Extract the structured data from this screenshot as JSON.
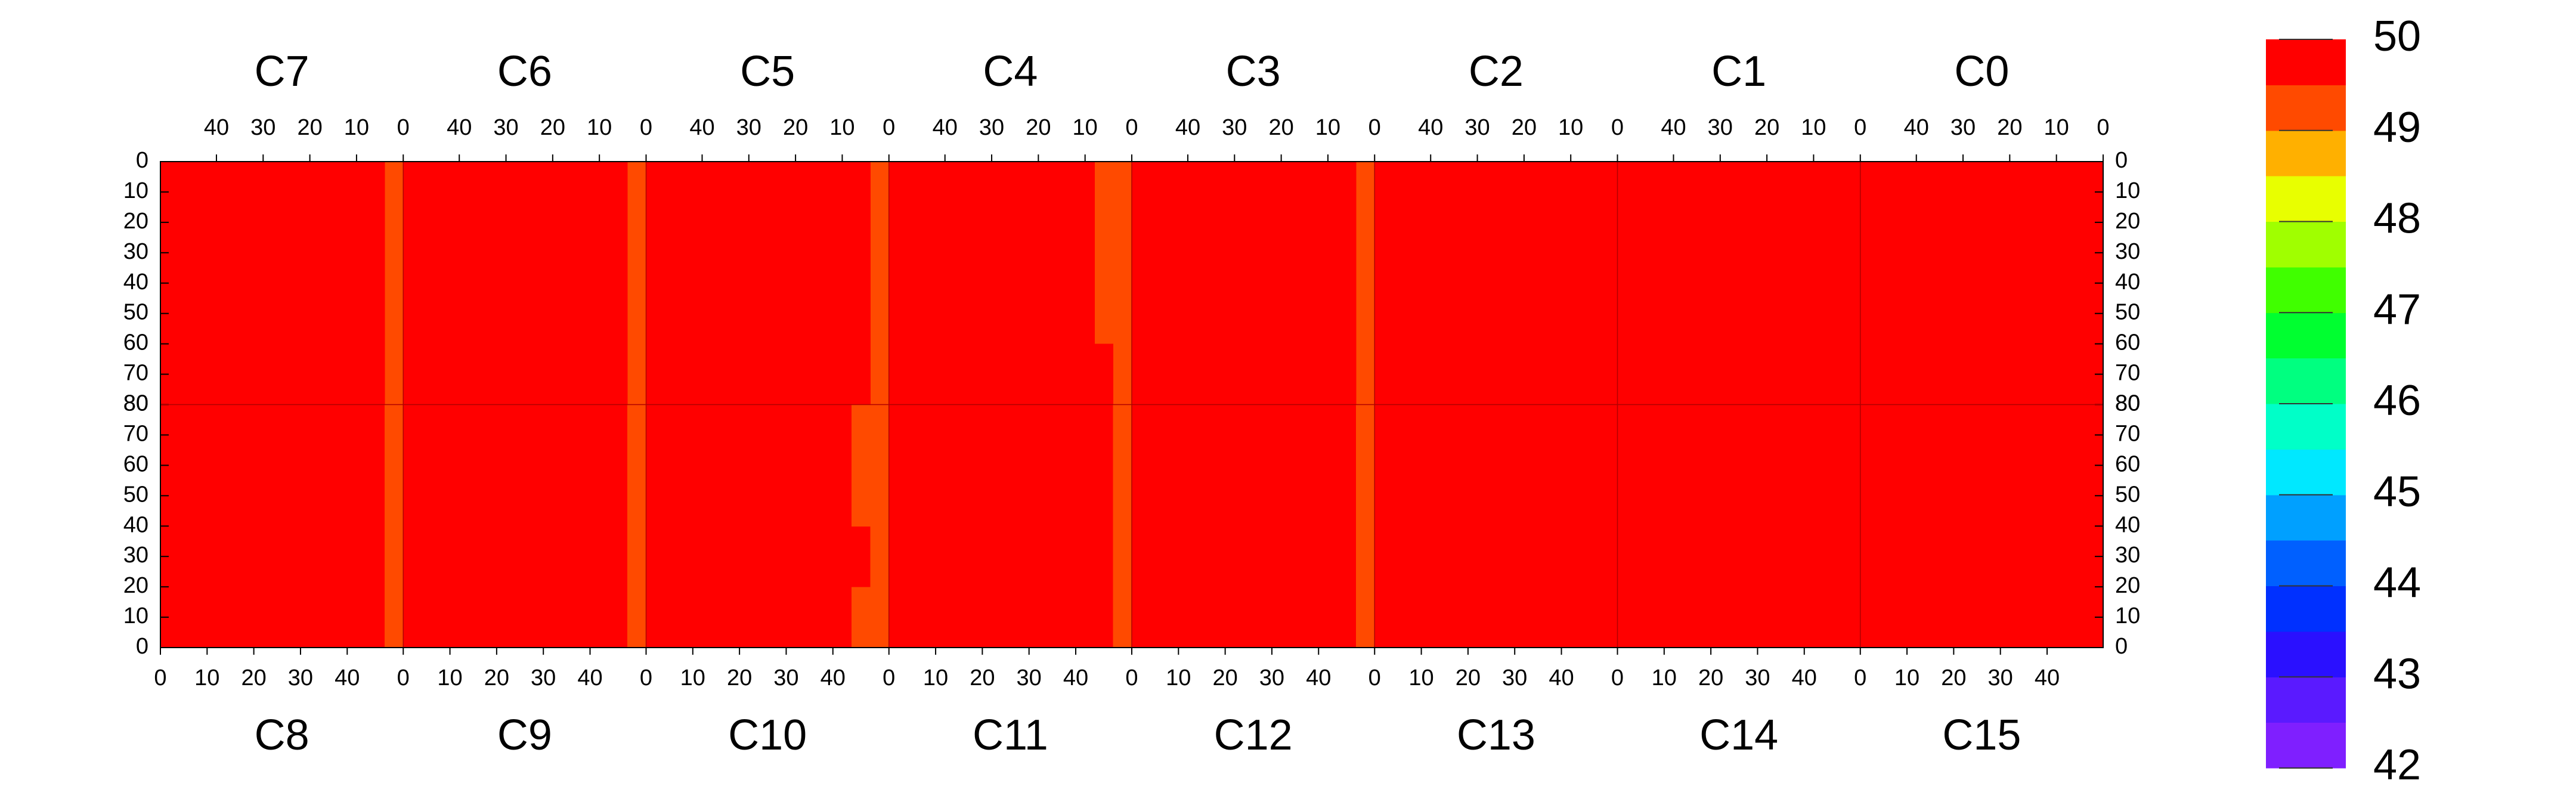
{
  "chart_data": {
    "type": "heatmap",
    "xlim": [
      0,
      52
    ],
    "xticks": [
      0,
      10,
      20,
      30,
      40
    ],
    "ylim": [
      0,
      80
    ],
    "yticks": [
      0,
      10,
      20,
      30,
      40,
      50,
      60,
      70,
      80
    ],
    "zlim": [
      42,
      50
    ],
    "zticks": [
      42,
      43,
      44,
      45,
      46,
      47,
      48,
      49,
      50
    ],
    "palette": [
      "#7f1fff",
      "#5a1aff",
      "#2a10ff",
      "#0030ff",
      "#0060ff",
      "#00a0ff",
      "#00e8ff",
      "#00ffc8",
      "#00ff80",
      "#00ff30",
      "#40ff00",
      "#a0ff00",
      "#e8ff00",
      "#ffb000",
      "#ff4a00",
      "#ff0000"
    ],
    "chips": [
      {
        "name": "C7",
        "values": [
          [
            49.3,
            49.7,
            49.6,
            49.7,
            49.7,
            49.6,
            49.7,
            49.7,
            49.6,
            49.7,
            49.6,
            49.7,
            49.6
          ],
          [
            49.4,
            49.6,
            49.7,
            49.7,
            49.6,
            49.7,
            49.7,
            49.6,
            49.7,
            49.7,
            49.7,
            49.6,
            49.7
          ],
          [
            49.3,
            49.7,
            49.7,
            49.6,
            49.7,
            49.7,
            49.6,
            49.7,
            49.7,
            49.6,
            49.7,
            49.7,
            49.6
          ],
          [
            49.2,
            49.6,
            49.7,
            49.7,
            49.7,
            49.6,
            49.7,
            49.7,
            49.6,
            49.7,
            49.7,
            49.6,
            49.7
          ]
        ]
      },
      {
        "name": "C6",
        "values": [
          [
            49.4,
            49.7,
            49.7,
            49.6,
            49.7,
            49.7,
            49.7,
            49.6,
            49.7,
            49.7,
            49.6,
            49.7,
            49.7
          ],
          [
            49.3,
            49.7,
            49.6,
            49.7,
            49.7,
            49.6,
            49.7,
            49.7,
            49.7,
            49.6,
            49.7,
            49.7,
            49.6
          ],
          [
            49.4,
            49.6,
            49.7,
            49.7,
            49.6,
            49.7,
            49.7,
            49.6,
            49.7,
            49.7,
            49.7,
            49.6,
            49.7
          ],
          [
            49.3,
            49.7,
            49.7,
            49.6,
            49.7,
            49.7,
            49.6,
            49.7,
            49.7,
            49.6,
            49.7,
            49.7,
            49.7
          ]
        ]
      },
      {
        "name": "C5",
        "values": [
          [
            49.4,
            49.6,
            49.7,
            49.7,
            49.7,
            49.6,
            49.7,
            49.7,
            49.6,
            49.7,
            49.7,
            49.7,
            49.6
          ],
          [
            49.4,
            49.7,
            49.7,
            49.6,
            49.7,
            49.7,
            49.6,
            49.7,
            49.7,
            49.7,
            49.6,
            49.7,
            49.7
          ],
          [
            49.3,
            49.7,
            49.6,
            49.7,
            49.7,
            49.7,
            49.7,
            49.6,
            49.7,
            49.6,
            49.7,
            49.7,
            49.6
          ],
          [
            49.4,
            49.6,
            49.7,
            49.7,
            49.6,
            49.7,
            49.7,
            49.7,
            49.6,
            49.7,
            49.7,
            49.6,
            49.7
          ]
        ]
      },
      {
        "name": "C4",
        "values": [
          [
            49.2,
            49.4,
            49.7,
            49.6,
            49.7,
            49.7,
            49.6,
            49.7,
            49.7,
            49.6,
            49.7,
            49.7,
            49.7
          ],
          [
            49.1,
            49.4,
            49.6,
            49.7,
            49.7,
            49.6,
            49.7,
            49.7,
            49.6,
            49.7,
            49.7,
            49.6,
            49.7
          ],
          [
            49.2,
            49.4,
            49.7,
            49.7,
            49.6,
            49.7,
            49.7,
            49.6,
            49.7,
            49.7,
            49.6,
            49.7,
            49.6
          ],
          [
            49.2,
            49.5,
            49.7,
            49.6,
            49.7,
            49.7,
            49.6,
            49.7,
            49.7,
            49.7,
            49.7,
            49.6,
            49.7
          ]
        ]
      },
      {
        "name": "C3",
        "values": [
          [
            49.3,
            49.6,
            49.7,
            49.7,
            49.6,
            49.7,
            49.7,
            49.7,
            49.6,
            49.7,
            49.7,
            49.6,
            49.7
          ],
          [
            49.2,
            49.7,
            49.7,
            49.6,
            49.7,
            49.7,
            49.6,
            49.7,
            49.7,
            49.6,
            49.7,
            49.7,
            49.7
          ],
          [
            49.3,
            49.6,
            49.7,
            49.7,
            49.7,
            49.6,
            49.7,
            49.7,
            49.6,
            49.7,
            49.7,
            49.7,
            49.6
          ],
          [
            49.2,
            49.7,
            49.6,
            49.7,
            49.7,
            49.7,
            49.6,
            49.7,
            49.7,
            49.7,
            49.6,
            49.7,
            49.7
          ]
        ]
      },
      {
        "name": "C2",
        "values": [
          [
            49.9,
            49.9,
            49.8,
            49.9,
            49.9,
            49.8,
            49.9,
            49.8,
            49.8,
            49.8,
            49.7,
            49.7,
            49.6
          ],
          [
            49.9,
            50,
            49.9,
            49.9,
            49.8,
            49.9,
            49.9,
            49.8,
            49.9,
            49.8,
            49.8,
            49.7,
            49.7
          ],
          [
            49.9,
            49.9,
            49.9,
            50,
            49.9,
            49.9,
            49.8,
            49.9,
            49.8,
            49.8,
            49.7,
            49.8,
            49.6
          ],
          [
            50,
            49.9,
            49.9,
            49.9,
            49.9,
            49.8,
            49.9,
            49.8,
            49.9,
            49.8,
            49.8,
            49.7,
            49.7
          ]
        ]
      },
      {
        "name": "C1",
        "values": [
          [
            49.7,
            49.9,
            50,
            50,
            49.9,
            50,
            50,
            49.9,
            50,
            50,
            49.9,
            50,
            49.9
          ],
          [
            49.7,
            50,
            49.9,
            50,
            50,
            50,
            49.9,
            50,
            50,
            49.9,
            50,
            50,
            50
          ],
          [
            49.6,
            49.9,
            50,
            50,
            49.9,
            50,
            50,
            50,
            49.9,
            50,
            50,
            49.9,
            50
          ],
          [
            49.7,
            50,
            50,
            49.9,
            50,
            50,
            49.9,
            50,
            50,
            50,
            49.9,
            50,
            49.9
          ]
        ]
      },
      {
        "name": "C0",
        "values": [
          [
            49.8,
            49.9,
            49.9,
            49.9,
            50,
            49.9,
            49.9,
            49.9,
            49.9,
            50,
            49.9,
            49.9,
            49.8
          ],
          [
            49.8,
            49.9,
            49.9,
            50,
            49.9,
            49.9,
            49.9,
            49.9,
            50,
            49.9,
            49.9,
            49.9,
            49.8
          ],
          [
            49.8,
            49.9,
            50,
            49.9,
            49.9,
            49.9,
            50,
            49.9,
            49.9,
            49.9,
            49.9,
            49.9,
            49.8
          ],
          [
            49.9,
            49.9,
            49.9,
            49.9,
            49.9,
            50,
            49.9,
            49.9,
            49.9,
            49.9,
            50,
            49.9,
            49.8
          ]
        ]
      },
      {
        "name": "C8",
        "values": [
          [
            49.7,
            49.6,
            49.7,
            49.7,
            49.6,
            49.7,
            49.7,
            49.6,
            49.7,
            49.7,
            49.6,
            49.7,
            49.2
          ],
          [
            49.6,
            49.7,
            49.7,
            49.6,
            49.7,
            49.7,
            49.6,
            49.7,
            49.7,
            49.6,
            49.7,
            49.6,
            49.1
          ],
          [
            49.7,
            49.7,
            49.6,
            49.7,
            49.7,
            49.6,
            49.7,
            49.7,
            49.6,
            49.7,
            49.7,
            49.7,
            49.3
          ],
          [
            49.6,
            49.7,
            49.7,
            49.7,
            49.6,
            49.7,
            49.7,
            49.6,
            49.7,
            49.7,
            49.6,
            49.7,
            49.3
          ]
        ]
      },
      {
        "name": "C9",
        "values": [
          [
            49.7,
            49.7,
            49.6,
            49.7,
            49.7,
            49.7,
            49.6,
            49.7,
            49.7,
            49.6,
            49.7,
            49.7,
            49.4
          ],
          [
            49.7,
            49.6,
            49.7,
            49.7,
            49.6,
            49.7,
            49.7,
            49.7,
            49.6,
            49.7,
            49.7,
            49.6,
            49.4
          ],
          [
            49.6,
            49.7,
            49.7,
            49.6,
            49.7,
            49.7,
            49.7,
            49.6,
            49.7,
            49.7,
            49.6,
            49.7,
            49.4
          ],
          [
            49.7,
            49.7,
            49.6,
            49.7,
            49.7,
            49.6,
            49.7,
            49.7,
            49.7,
            49.6,
            49.7,
            49.7,
            49.3
          ]
        ]
      },
      {
        "name": "C10",
        "values": [
          [
            49.7,
            49.6,
            49.7,
            49.7,
            49.7,
            49.6,
            49.7,
            49.7,
            49.6,
            49.7,
            49.7,
            49.4,
            49.2
          ],
          [
            49.6,
            49.7,
            49.7,
            49.6,
            49.7,
            49.7,
            49.6,
            49.7,
            49.7,
            49.7,
            49.6,
            49.5,
            49.1
          ],
          [
            49.7,
            49.7,
            49.6,
            49.7,
            49.7,
            49.7,
            49.7,
            49.6,
            49.7,
            49.6,
            49.7,
            49.4,
            49.2
          ],
          [
            49.7,
            49.6,
            49.7,
            49.7,
            49.6,
            49.7,
            49.7,
            49.7,
            49.6,
            49.7,
            49.7,
            49.4,
            49.2
          ]
        ]
      },
      {
        "name": "C11",
        "values": [
          [
            49.7,
            49.7,
            49.7,
            49.6,
            49.7,
            49.7,
            49.6,
            49.7,
            49.7,
            49.6,
            49.7,
            49.6,
            49.3
          ],
          [
            49.6,
            49.7,
            49.6,
            49.7,
            49.7,
            49.7,
            49.7,
            49.6,
            49.7,
            49.7,
            49.7,
            49.7,
            49.2
          ],
          [
            49.7,
            49.6,
            49.7,
            49.7,
            49.6,
            49.7,
            49.7,
            49.7,
            49.6,
            49.7,
            49.6,
            49.7,
            49.3
          ],
          [
            49.7,
            49.7,
            49.7,
            49.6,
            49.7,
            49.6,
            49.7,
            49.7,
            49.7,
            49.6,
            49.7,
            49.6,
            49.3
          ]
        ]
      },
      {
        "name": "C12",
        "values": [
          [
            49.6,
            49.7,
            49.7,
            49.7,
            49.6,
            49.7,
            49.7,
            49.6,
            49.7,
            49.7,
            49.7,
            49.6,
            49.2
          ],
          [
            49.7,
            49.7,
            49.6,
            49.7,
            49.7,
            49.6,
            49.7,
            49.7,
            49.6,
            49.7,
            49.6,
            49.7,
            49.2
          ],
          [
            49.7,
            49.6,
            49.7,
            49.7,
            49.7,
            49.7,
            49.6,
            49.7,
            49.7,
            49.7,
            49.7,
            49.6,
            49.3
          ],
          [
            49.6,
            49.7,
            49.7,
            49.6,
            49.7,
            49.7,
            49.7,
            49.6,
            49.7,
            49.6,
            49.7,
            49.7,
            49.2
          ]
        ]
      },
      {
        "name": "C13",
        "values": [
          [
            49.7,
            49.8,
            49.9,
            49.8,
            49.9,
            49.9,
            49.8,
            49.9,
            49.9,
            49.9,
            49.9,
            50,
            49.9
          ],
          [
            49.6,
            49.8,
            49.8,
            49.9,
            49.9,
            49.8,
            49.9,
            49.9,
            49.9,
            49.9,
            50,
            49.9,
            49.9
          ],
          [
            49.7,
            49.7,
            49.8,
            49.9,
            49.8,
            49.9,
            49.9,
            49.9,
            49.9,
            50,
            49.9,
            49.9,
            50
          ],
          [
            49.7,
            49.8,
            49.8,
            49.8,
            49.9,
            49.9,
            49.8,
            49.9,
            49.9,
            49.9,
            49.9,
            50,
            49.9
          ]
        ]
      },
      {
        "name": "C14",
        "values": [
          [
            49.9,
            50,
            50,
            49.9,
            50,
            50,
            50,
            49.9,
            50,
            50,
            50,
            49.9,
            49.7
          ],
          [
            50,
            49.9,
            50,
            50,
            50,
            49.9,
            50,
            50,
            50,
            49.9,
            50,
            50,
            49.7
          ],
          [
            49.9,
            50,
            50,
            50,
            49.9,
            50,
            50,
            50,
            49.9,
            50,
            50,
            50,
            49.6
          ],
          [
            50,
            50,
            49.9,
            50,
            50,
            50,
            49.9,
            50,
            50,
            50,
            49.9,
            50,
            49.7
          ]
        ]
      },
      {
        "name": "C15",
        "values": [
          [
            49.9,
            49.9,
            49.9,
            49.8,
            49.9,
            49.9,
            49.9,
            49.8,
            49.9,
            49.9,
            49.9,
            49.8,
            49.8
          ],
          [
            49.9,
            49.8,
            49.9,
            49.9,
            49.9,
            49.8,
            49.9,
            49.9,
            49.9,
            49.8,
            49.9,
            49.9,
            49.8
          ],
          [
            49.8,
            49.9,
            49.9,
            49.9,
            49.8,
            49.9,
            49.9,
            49.8,
            49.9,
            49.9,
            49.8,
            49.9,
            49.7
          ],
          [
            49.8,
            49.8,
            49.9,
            49.9,
            49.9,
            49.8,
            49.9,
            49.8,
            49.9,
            49.8,
            49.9,
            49.9,
            49.8
          ]
        ]
      }
    ]
  }
}
